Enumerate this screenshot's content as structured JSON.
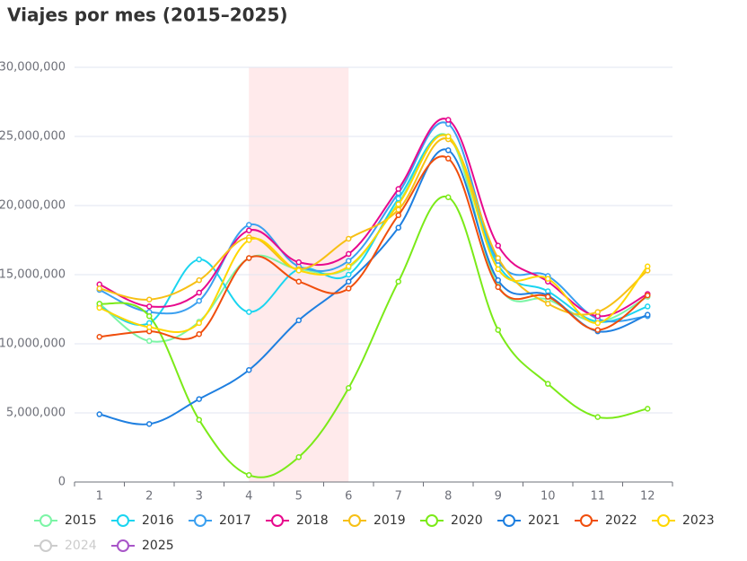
{
  "chart_data": {
    "type": "line",
    "title": "Viajes por mes (2015–2025)",
    "categories": [
      "1",
      "2",
      "3",
      "4",
      "5",
      "6",
      "7",
      "8",
      "9",
      "10",
      "11",
      "12"
    ],
    "highlight": [
      "4",
      "6"
    ],
    "ylim": [
      0,
      30000000
    ],
    "yticks": [
      0,
      {
        "value": 5000000,
        "label": "5,000,000"
      },
      {
        "value": 10000000,
        "label": "10,000,000"
      },
      {
        "value": 15000000,
        "label": "15,000,000"
      },
      {
        "value": 20000000,
        "label": "20,000,000"
      },
      {
        "value": 25000000,
        "label": "25,000,000"
      },
      {
        "value": 30000000,
        "label": "30,000,000"
      }
    ],
    "grid": true,
    "legend": "bottom",
    "series": [
      {
        "name": "2015",
        "color": "#7cf5a6",
        "values": [
          12900000,
          10200000,
          11600000,
          16200000,
          15400000,
          15500000,
          20200000,
          25000000,
          14200000,
          13200000,
          11600000,
          13400000
        ]
      },
      {
        "name": "2016",
        "color": "#1ad5f0",
        "values": [
          12700000,
          11500000,
          16100000,
          12300000,
          15400000,
          15000000,
          20500000,
          25000000,
          15700000,
          13800000,
          11600000,
          12700000
        ]
      },
      {
        "name": "2017",
        "color": "#3ba0f0",
        "values": [
          13900000,
          12300000,
          13100000,
          18600000,
          15600000,
          16000000,
          20900000,
          25900000,
          16000000,
          14900000,
          11800000,
          12000000
        ]
      },
      {
        "name": "2018",
        "color": "#e7098d",
        "values": [
          14300000,
          12700000,
          13700000,
          18200000,
          15900000,
          16500000,
          21200000,
          26200000,
          17100000,
          14500000,
          12000000,
          13600000
        ]
      },
      {
        "name": "2019",
        "color": "#f7c015",
        "values": [
          14000000,
          13200000,
          14600000,
          17700000,
          15400000,
          17600000,
          19700000,
          24800000,
          16200000,
          12900000,
          12300000,
          15300000
        ]
      },
      {
        "name": "2020",
        "color": "#7bea18",
        "values": [
          12900000,
          12000000,
          4500000,
          500000,
          1800000,
          6800000,
          14500000,
          20600000,
          11000000,
          7100000,
          4700000,
          5300000
        ]
      },
      {
        "name": "2021",
        "color": "#1e7fe0",
        "values": [
          4900000,
          4200000,
          6000000,
          8100000,
          11700000,
          14500000,
          18400000,
          24000000,
          14600000,
          13500000,
          10900000,
          12100000
        ]
      },
      {
        "name": "2022",
        "color": "#f04e0c",
        "values": [
          10500000,
          10900000,
          10700000,
          16200000,
          14500000,
          14000000,
          19300000,
          23400000,
          14100000,
          13400000,
          11000000,
          13500000
        ]
      },
      {
        "name": "2023",
        "color": "#ffd700",
        "values": [
          12600000,
          11200000,
          11500000,
          17500000,
          15300000,
          15600000,
          20100000,
          25000000,
          15400000,
          14700000,
          11500000,
          15600000
        ]
      },
      {
        "name": "2024",
        "color": "#cccccc",
        "visible": false,
        "values": [
          null,
          null,
          null,
          null,
          null,
          null,
          null,
          null,
          null,
          null,
          null,
          null
        ]
      },
      {
        "name": "2025",
        "color": "#a855c8",
        "values": [
          null,
          null,
          null,
          null,
          null,
          null,
          null,
          null,
          null,
          null,
          null,
          null
        ]
      }
    ]
  }
}
